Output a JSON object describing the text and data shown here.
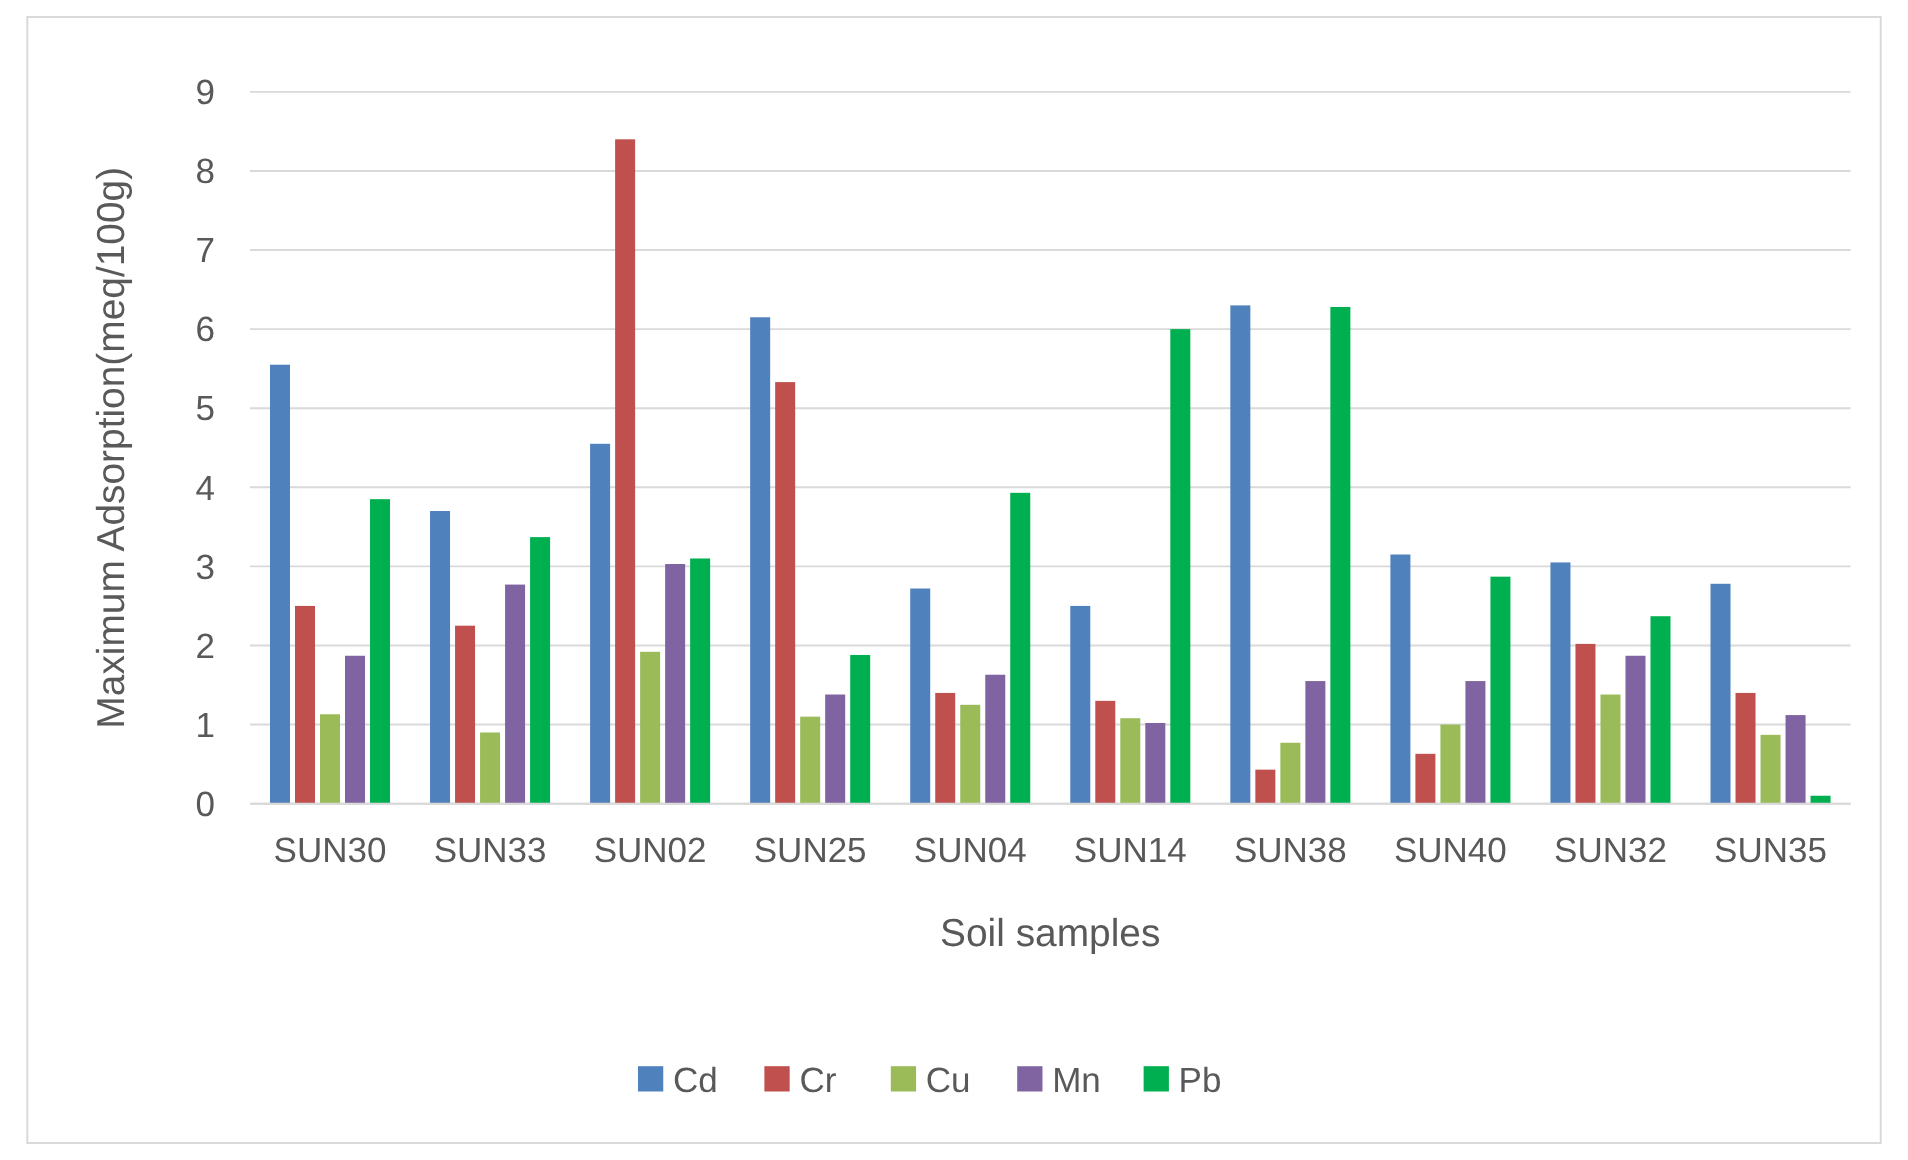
{
  "chart_data": {
    "type": "bar",
    "xlabel": "Soil samples",
    "ylabel": "Maximum Adsorption(meq/100g)",
    "categories": [
      "SUN30",
      "SUN33",
      "SUN02",
      "SUN25",
      "SUN04",
      "SUN14",
      "SUN38",
      "SUN40",
      "SUN32",
      "SUN35"
    ],
    "series": [
      {
        "name": "Cd",
        "color": "#4f81bd",
        "values": [
          5.55,
          3.7,
          4.55,
          6.15,
          2.72,
          2.5,
          6.3,
          3.15,
          3.05,
          2.78
        ]
      },
      {
        "name": "Cr",
        "color": "#c0504d",
        "values": [
          2.5,
          2.25,
          8.4,
          5.33,
          1.4,
          1.3,
          0.43,
          0.63,
          2.02,
          1.4
        ]
      },
      {
        "name": "Cu",
        "color": "#9bbb59",
        "values": [
          1.13,
          0.9,
          1.92,
          1.1,
          1.25,
          1.08,
          0.77,
          1.0,
          1.38,
          0.87
        ]
      },
      {
        "name": "Mn",
        "color": "#8064a2",
        "values": [
          1.87,
          2.77,
          3.03,
          1.38,
          1.63,
          1.02,
          1.55,
          1.55,
          1.87,
          1.12
        ]
      },
      {
        "name": "Pb",
        "color": "#00b050",
        "values": [
          3.85,
          3.37,
          3.1,
          1.88,
          3.93,
          6.0,
          6.28,
          2.87,
          2.37,
          0.1
        ]
      }
    ],
    "ylim": [
      0,
      9
    ],
    "yticks": [
      0,
      1,
      2,
      3,
      4,
      5,
      6,
      7,
      8,
      9
    ],
    "grid": "y",
    "legend": "bottom"
  }
}
